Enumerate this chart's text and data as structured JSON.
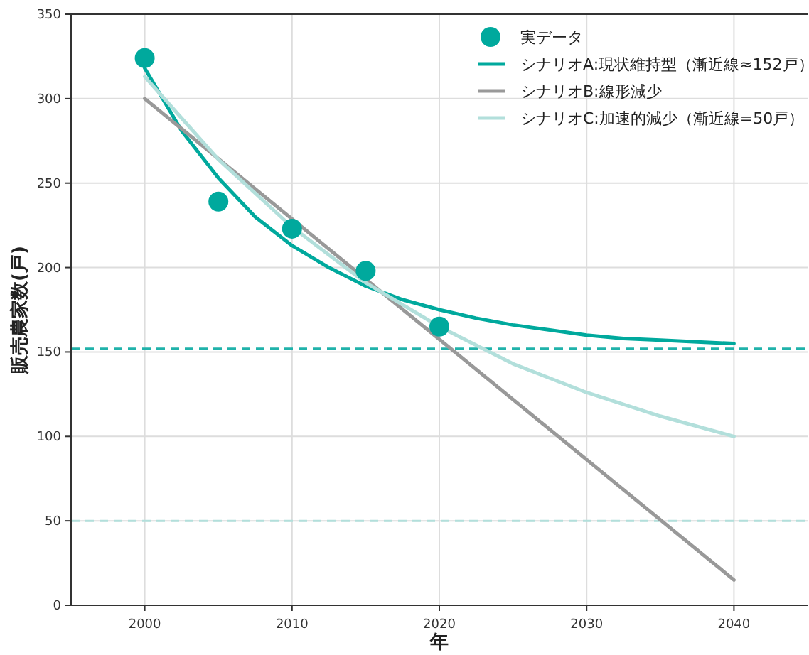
{
  "chart_data": {
    "type": "line",
    "xlabel": "年",
    "ylabel": "販売農家数(戸)",
    "xlim": [
      1995,
      2045
    ],
    "ylim": [
      0,
      350
    ],
    "xticks": [
      2000,
      2010,
      2020,
      2030,
      2040
    ],
    "yticks": [
      0,
      50,
      100,
      150,
      200,
      250,
      300,
      350
    ],
    "grid": true,
    "legend": "top right",
    "series": [
      {
        "name": "実データ",
        "type": "scatter",
        "marker": "circle",
        "color": "#00a99d",
        "x": [
          2000,
          2005,
          2010,
          2015,
          2020
        ],
        "values": [
          324,
          239,
          223,
          198,
          165
        ]
      },
      {
        "name": "シナリオA:現状維持型（漸近線≈152戸）",
        "type": "line",
        "color": "#00a99d",
        "x": [
          2000,
          2002.5,
          2005,
          2007.5,
          2010,
          2012.5,
          2015,
          2017.5,
          2020,
          2022.5,
          2025,
          2027.5,
          2030,
          2032.5,
          2035,
          2037.5,
          2040
        ],
        "values": [
          318,
          281,
          253,
          230,
          213,
          200,
          189,
          181,
          175,
          170,
          166,
          163,
          160,
          158,
          157,
          156,
          155
        ]
      },
      {
        "name": "シナリオB:線形減少",
        "type": "line",
        "color": "#999999",
        "x": [
          2000,
          2040
        ],
        "values": [
          300,
          15
        ]
      },
      {
        "name": "シナリオC:加速的減少（漸近線=50戸）",
        "type": "line",
        "color": "#b2dfdb",
        "x": [
          2000,
          2005,
          2010,
          2015,
          2020,
          2025,
          2030,
          2035,
          2040
        ],
        "values": [
          313,
          264,
          224,
          191,
          165,
          143,
          126,
          112,
          100
        ]
      }
    ],
    "ref_lines": [
      {
        "axis": "y",
        "value": 152,
        "color": "#20b2aa",
        "line_style": "dashed"
      },
      {
        "axis": "y",
        "value": 50,
        "color": "#b2dfdb",
        "line_style": "dashed"
      }
    ]
  }
}
